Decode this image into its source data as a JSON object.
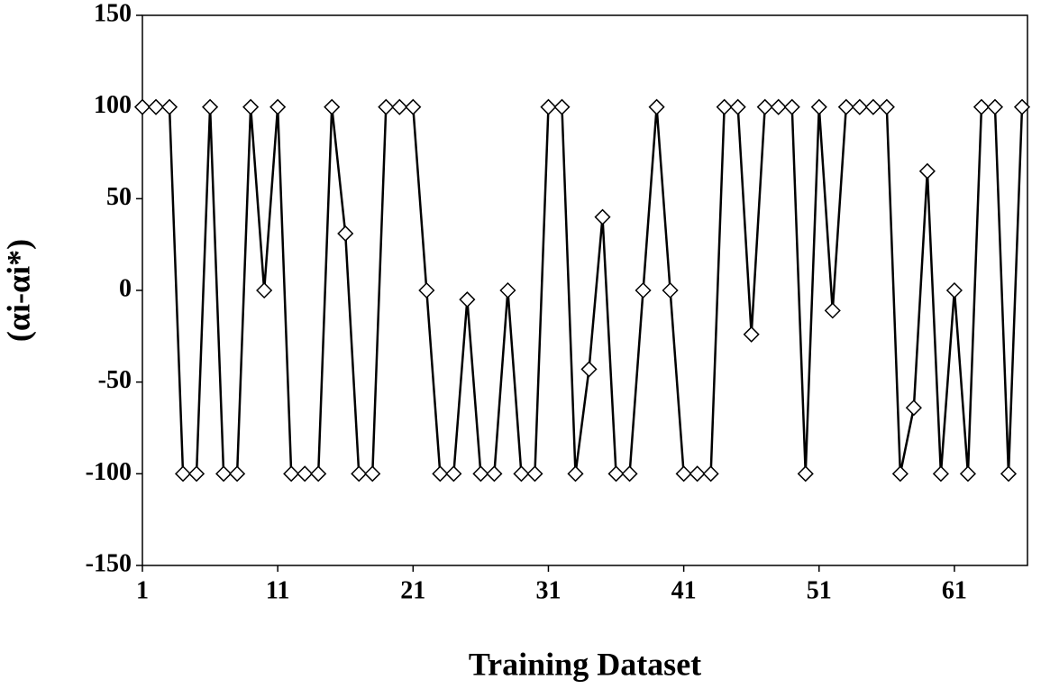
{
  "chart_data": {
    "type": "line",
    "x_label": "Training Dataset",
    "y_label": "(αi-αi*)",
    "x": [
      1,
      2,
      3,
      4,
      5,
      6,
      7,
      8,
      9,
      10,
      11,
      12,
      13,
      14,
      15,
      16,
      17,
      18,
      19,
      20,
      21,
      22,
      23,
      24,
      25,
      26,
      27,
      28,
      29,
      30,
      31,
      32,
      33,
      34,
      35,
      36,
      37,
      38,
      39,
      40,
      41,
      42,
      43,
      44,
      45,
      46,
      47,
      48,
      49,
      50,
      51,
      52,
      53,
      54,
      55,
      56,
      57,
      58,
      59,
      60,
      61,
      62,
      63,
      64,
      65,
      66
    ],
    "series": [
      {
        "color": "#000000",
        "marker": "diamond",
        "values": [
          100,
          100,
          100,
          -100,
          -100,
          100,
          -100,
          -100,
          100,
          0,
          100,
          -100,
          -100,
          -100,
          100,
          31,
          -100,
          -100,
          100,
          100,
          100,
          0,
          -100,
          -100,
          -5,
          -100,
          -100,
          0,
          -100,
          -100,
          100,
          100,
          -100,
          -43,
          40,
          -100,
          -100,
          0,
          100,
          0,
          -100,
          -100,
          -100,
          100,
          100,
          -24,
          100,
          100,
          100,
          -100,
          100,
          -11,
          100,
          100,
          100,
          100,
          -100,
          -64,
          65,
          -100,
          0,
          -100,
          100,
          100,
          -100,
          100
        ]
      }
    ],
    "xlim": [
      1,
      66
    ],
    "xticks": [
      1,
      11,
      21,
      31,
      41,
      51,
      61
    ],
    "ylim": [
      -150,
      150
    ],
    "yticks": [
      -150,
      -100,
      -50,
      0,
      50,
      100,
      150
    ]
  }
}
